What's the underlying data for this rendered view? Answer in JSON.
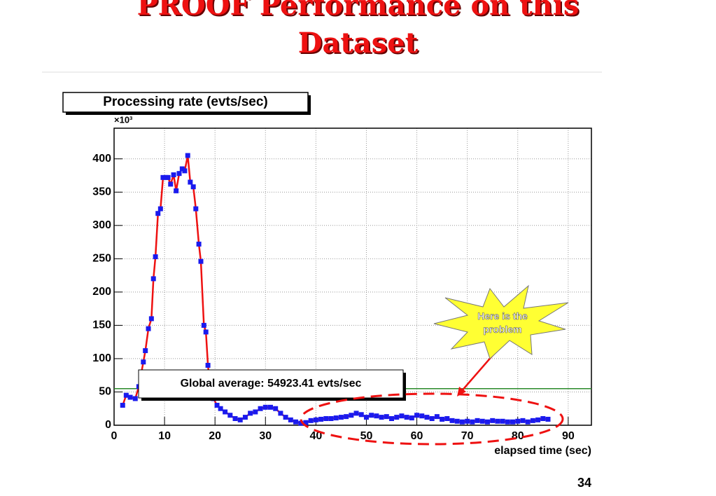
{
  "slide": {
    "title_lines": [
      "PROOF Performance on this",
      "Dataset"
    ],
    "page_number": "34"
  },
  "chart_data": {
    "type": "scatter-line",
    "title": "Processing rate (evts/sec)",
    "y_multiplier": "×10³",
    "xlabel": "elapsed time (sec)",
    "x": [
      1.7,
      2.4,
      3.2,
      4.2,
      4.9,
      5.8,
      6.2,
      6.8,
      7.4,
      7.8,
      8.2,
      8.7,
      9.2,
      9.7,
      10.3,
      10.7,
      11.2,
      11.8,
      12.3,
      12.9,
      13.5,
      14,
      14.6,
      15.1,
      15.7,
      16.2,
      16.8,
      17.2,
      17.8,
      18.2,
      18.6,
      19,
      19.7,
      20.4,
      21.1,
      22,
      23,
      24,
      25,
      26,
      27,
      28,
      29,
      30,
      31,
      32,
      33,
      34,
      35,
      36,
      37,
      38,
      39,
      40,
      41,
      42,
      43,
      44,
      45,
      46,
      47,
      48,
      49,
      50,
      51,
      52,
      53,
      54,
      55,
      56,
      57,
      58,
      59,
      60,
      61,
      62,
      63,
      64,
      65,
      66,
      67,
      68,
      69,
      70,
      71,
      72,
      73,
      74,
      75,
      76,
      77,
      78,
      79,
      80,
      81,
      82,
      83,
      84,
      85,
      86
    ],
    "values": [
      30,
      45,
      42,
      40,
      58,
      95,
      112,
      145,
      160,
      220,
      253,
      318,
      325,
      372,
      372,
      372,
      362,
      376,
      352,
      378,
      385,
      382,
      405,
      365,
      358,
      325,
      272,
      246,
      150,
      140,
      90,
      60,
      40,
      30,
      25,
      20,
      15,
      10,
      8,
      12,
      18,
      20,
      25,
      27,
      27,
      25,
      18,
      12,
      8,
      5,
      3,
      4,
      7,
      8,
      9,
      10,
      10,
      11,
      12,
      13,
      15,
      18,
      16,
      12,
      15,
      14,
      12,
      13,
      10,
      12,
      14,
      12,
      11,
      15,
      14,
      12,
      10,
      13,
      9,
      10,
      7,
      6,
      5,
      6,
      5,
      7,
      6,
      5,
      7,
      6,
      6,
      5,
      5,
      6,
      7,
      5,
      7,
      8,
      10,
      9
    ],
    "marker_color": "#1a1aee",
    "line_color": "#ee1111",
    "average": {
      "value": 54.92341,
      "label": "Global average: 54923.41 evts/sec",
      "color": "#2a8a2a"
    },
    "callout": "Here is the problem",
    "xlim": [
      0,
      94.6
    ],
    "ylim": [
      0,
      446
    ],
    "xticks": [
      0,
      10,
      20,
      30,
      40,
      50,
      60,
      70,
      80,
      90
    ],
    "yticks": [
      0,
      50,
      100,
      150,
      200,
      250,
      300,
      350,
      400
    ],
    "grid": true
  }
}
